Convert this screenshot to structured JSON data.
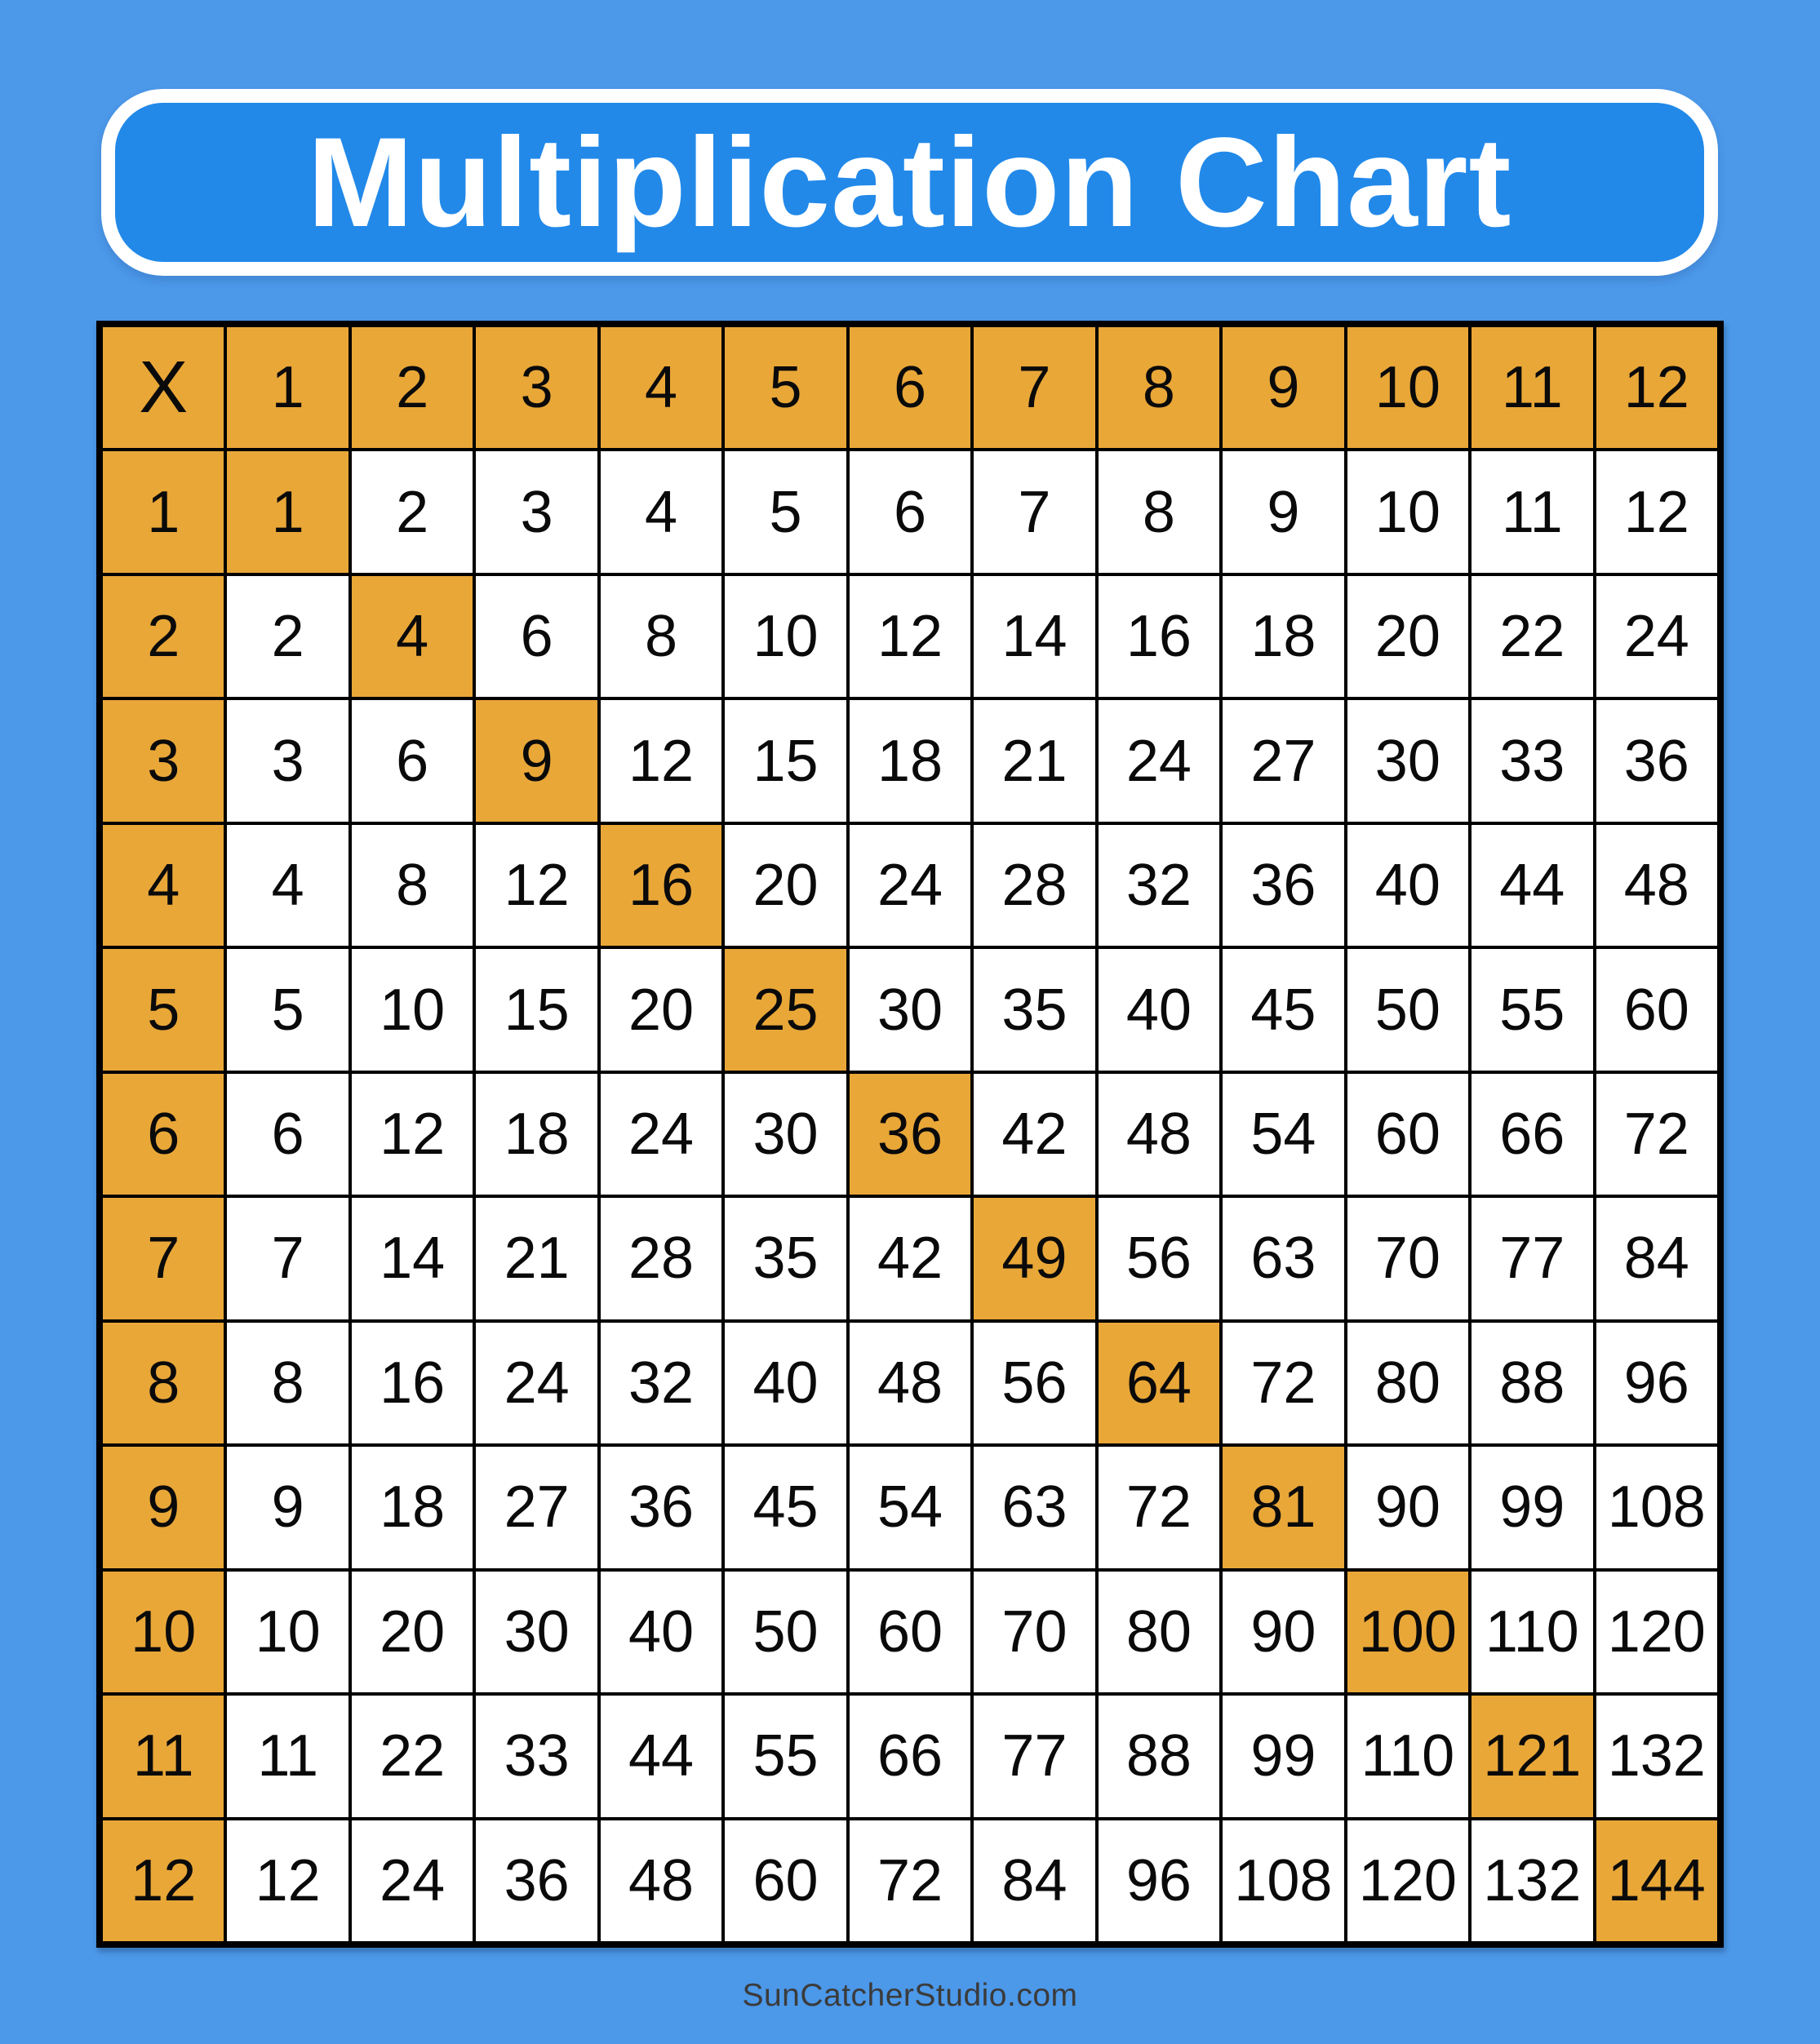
{
  "banner": {
    "title": "Multiplication Chart"
  },
  "footer": {
    "site_label": "SunCatcherStudio.com"
  },
  "colors": {
    "page_background": "#4C98E9",
    "banner_fill": "#2289E9",
    "banner_border": "#FFFFFF",
    "title_text": "#FFFFFF",
    "cell_highlight": "#E9A738",
    "cell_background": "#FFFFFF",
    "grid_border": "#000000",
    "cell_text": "#0A0A0A",
    "footer_text": "#3B3B3B"
  },
  "chart_data": {
    "type": "table",
    "title": "Multiplication Chart",
    "corner_label": "X",
    "column_headers": [
      1,
      2,
      3,
      4,
      5,
      6,
      7,
      8,
      9,
      10,
      11,
      12
    ],
    "row_headers": [
      1,
      2,
      3,
      4,
      5,
      6,
      7,
      8,
      9,
      10,
      11,
      12
    ],
    "values": [
      [
        1,
        2,
        3,
        4,
        5,
        6,
        7,
        8,
        9,
        10,
        11,
        12
      ],
      [
        2,
        4,
        6,
        8,
        10,
        12,
        14,
        16,
        18,
        20,
        22,
        24
      ],
      [
        3,
        6,
        9,
        12,
        15,
        18,
        21,
        24,
        27,
        30,
        33,
        36
      ],
      [
        4,
        8,
        12,
        16,
        20,
        24,
        28,
        32,
        36,
        40,
        44,
        48
      ],
      [
        5,
        10,
        15,
        20,
        25,
        30,
        35,
        40,
        45,
        50,
        55,
        60
      ],
      [
        6,
        12,
        18,
        24,
        30,
        36,
        42,
        48,
        54,
        60,
        66,
        72
      ],
      [
        7,
        14,
        21,
        28,
        35,
        42,
        49,
        56,
        63,
        70,
        77,
        84
      ],
      [
        8,
        16,
        24,
        32,
        40,
        48,
        56,
        64,
        72,
        80,
        88,
        96
      ],
      [
        9,
        18,
        27,
        36,
        45,
        54,
        63,
        72,
        81,
        90,
        99,
        108
      ],
      [
        10,
        20,
        30,
        40,
        50,
        60,
        70,
        80,
        90,
        100,
        110,
        120
      ],
      [
        11,
        22,
        33,
        44,
        55,
        66,
        77,
        88,
        99,
        110,
        121,
        132
      ],
      [
        12,
        24,
        36,
        48,
        60,
        72,
        84,
        96,
        108,
        120,
        132,
        144
      ]
    ],
    "highlight_rule": "header row, header column, and diagonal square products are highlighted",
    "highlight_color": "#E9A738",
    "grid_on": true,
    "legend_position": "none"
  }
}
